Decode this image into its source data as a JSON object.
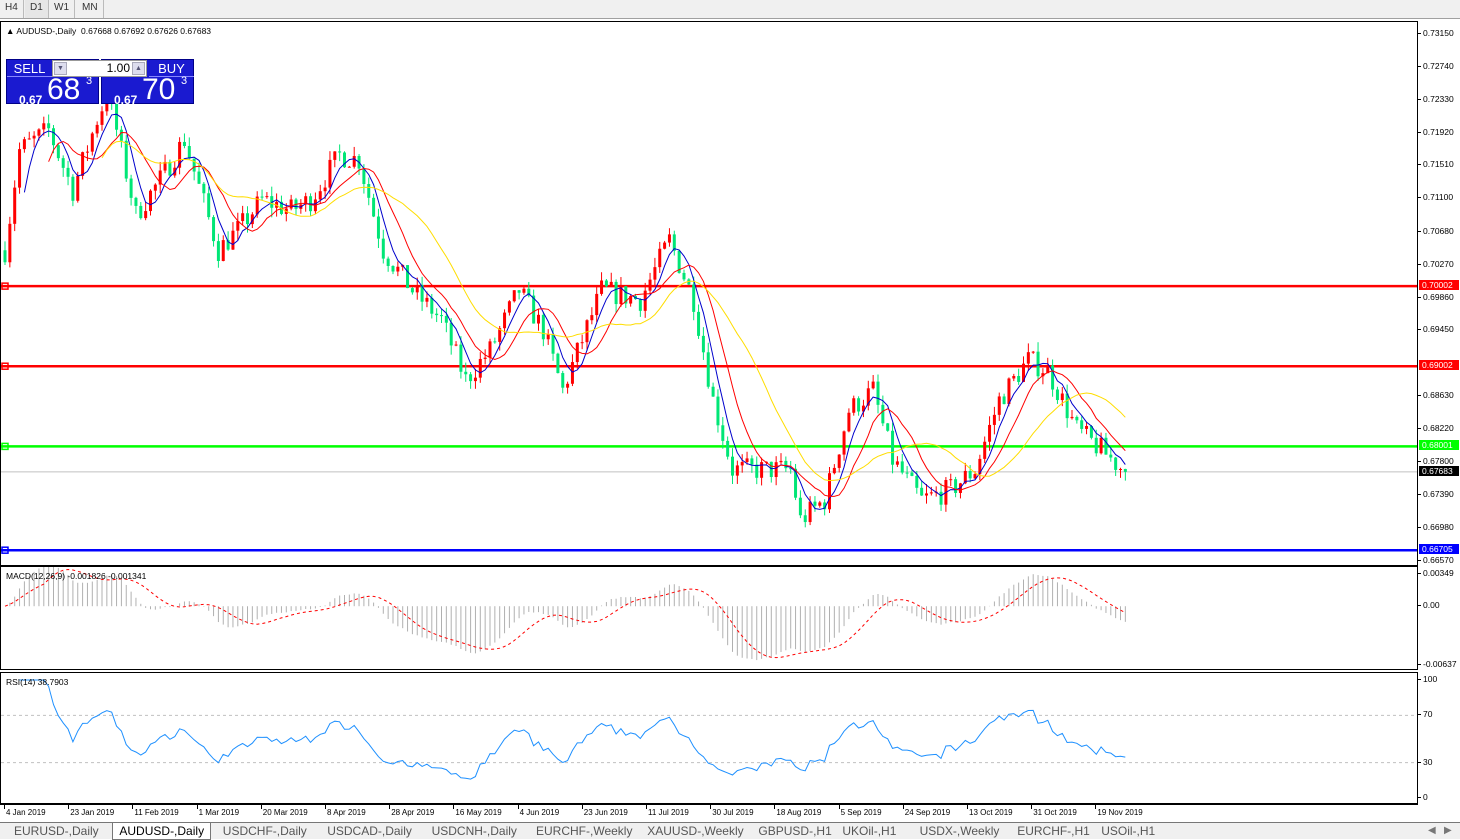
{
  "timeframes": [
    "H4",
    "D1",
    "W1",
    "MN"
  ],
  "active_timeframe": "D1",
  "chart": {
    "title": "AUDUSD-,Daily",
    "ohlc_text": "0.67668 0.67692 0.67626 0.67683",
    "symbol_icon": "triangle-up-icon"
  },
  "trade": {
    "sell_label": "SELL",
    "buy_label": "BUY",
    "lot": "1.00",
    "sell_prefix": "0.67",
    "sell_big": "68",
    "sell_sup": "3",
    "buy_prefix": "0.67",
    "buy_big": "70",
    "buy_sup": "3"
  },
  "price_axis": {
    "labels": [
      "0.73150",
      "0.72740",
      "0.72330",
      "0.71920",
      "0.71510",
      "0.71100",
      "0.70680",
      "0.70270",
      "0.69860",
      "0.69450",
      "0.68630",
      "0.68220",
      "0.67800",
      "0.67390",
      "0.66980",
      "0.66570"
    ],
    "min": 0.6657,
    "max": 0.7315
  },
  "levels": [
    {
      "price": 0.70002,
      "label": "0.70002",
      "color": "#ff0000"
    },
    {
      "price": 0.69002,
      "label": "0.69002",
      "color": "#ff0000"
    },
    {
      "price": 0.68001,
      "label": "0.68001",
      "color": "#00ff00"
    },
    {
      "price": 0.66705,
      "label": "0.66705",
      "color": "#0000ff"
    }
  ],
  "current_price": {
    "price": 0.67683,
    "label": "0.67683",
    "color": "#000000"
  },
  "colors": {
    "bull": "#ff0000",
    "bear": "#00e676",
    "ma_fast": "#0000cc",
    "ma_mid": "#ff0000",
    "ma_slow": "#ffdd00",
    "macd_hist": "#b0b0b0",
    "macd_signal": "#ff0000",
    "rsi": "#1e90ff"
  },
  "price_path": [
    [
      0,
      0.7045
    ],
    [
      3,
      0.717
    ],
    [
      9,
      0.7195
    ],
    [
      14,
      0.712
    ],
    [
      19,
      0.7208
    ],
    [
      21,
      0.7239
    ],
    [
      23,
      0.7195
    ],
    [
      27,
      0.7089
    ],
    [
      32,
      0.7133
    ],
    [
      37,
      0.7183
    ],
    [
      44,
      0.7045
    ],
    [
      48,
      0.707
    ],
    [
      53,
      0.7108
    ],
    [
      59,
      0.7095
    ],
    [
      63,
      0.7108
    ],
    [
      69,
      0.7164
    ],
    [
      73,
      0.7158
    ],
    [
      78,
      0.7045
    ],
    [
      84,
      0.6995
    ],
    [
      90,
      0.6958
    ],
    [
      95,
      0.6883
    ],
    [
      100,
      0.692
    ],
    [
      106,
      0.6995
    ],
    [
      111,
      0.6945
    ],
    [
      115,
      0.687
    ],
    [
      119,
      0.6933
    ],
    [
      123,
      0.6995
    ],
    [
      131,
      0.6983
    ],
    [
      137,
      0.7058
    ],
    [
      142,
      0.6983
    ],
    [
      146,
      0.6858
    ],
    [
      150,
      0.6771
    ],
    [
      156,
      0.6771
    ],
    [
      162,
      0.6771
    ],
    [
      164,
      0.6708
    ],
    [
      169,
      0.6733
    ],
    [
      174,
      0.6845
    ],
    [
      179,
      0.687
    ],
    [
      183,
      0.6783
    ],
    [
      189,
      0.6733
    ],
    [
      195,
      0.6746
    ],
    [
      200,
      0.6771
    ],
    [
      205,
      0.6858
    ],
    [
      211,
      0.6908
    ],
    [
      215,
      0.6895
    ],
    [
      221,
      0.6821
    ],
    [
      226,
      0.6796
    ],
    [
      231,
      0.67683
    ]
  ],
  "macd": {
    "title": "MACD(12,26,9) -0.001826 -0.001341",
    "labels": [
      "0.00349",
      "0.00",
      "-0.00637"
    ],
    "max": 0.00349,
    "min": -0.00637
  },
  "rsi": {
    "title": "RSI(14) 38.7903",
    "labels": [
      "100",
      "70",
      "30",
      "0"
    ],
    "levels": [
      70,
      30
    ]
  },
  "dates": [
    "4 Jan 2019",
    "23 Jan 2019",
    "11 Feb 2019",
    "1 Mar 2019",
    "20 Mar 2019",
    "8 Apr 2019",
    "28 Apr 2019",
    "16 May 2019",
    "4 Jun 2019",
    "23 Jun 2019",
    "11 Jul 2019",
    "30 Jul 2019",
    "18 Aug 2019",
    "5 Sep 2019",
    "24 Sep 2019",
    "13 Oct 2019",
    "31 Oct 2019",
    "19 Nov 2019"
  ],
  "symbol_tabs": [
    "EURUSD-,Daily",
    "AUDUSD-,Daily",
    "USDCHF-,Daily",
    "USDCAD-,Daily",
    "USDCNH-,Daily",
    "EURCHF-,Weekly",
    "XAUUSD-,Weekly",
    "GBPUSD-,H1",
    "UKOil-,H1",
    "USDX-,Weekly",
    "EURCHF-,H1",
    "USOil-,H1"
  ],
  "active_symbol_tab": "AUDUSD-,Daily"
}
